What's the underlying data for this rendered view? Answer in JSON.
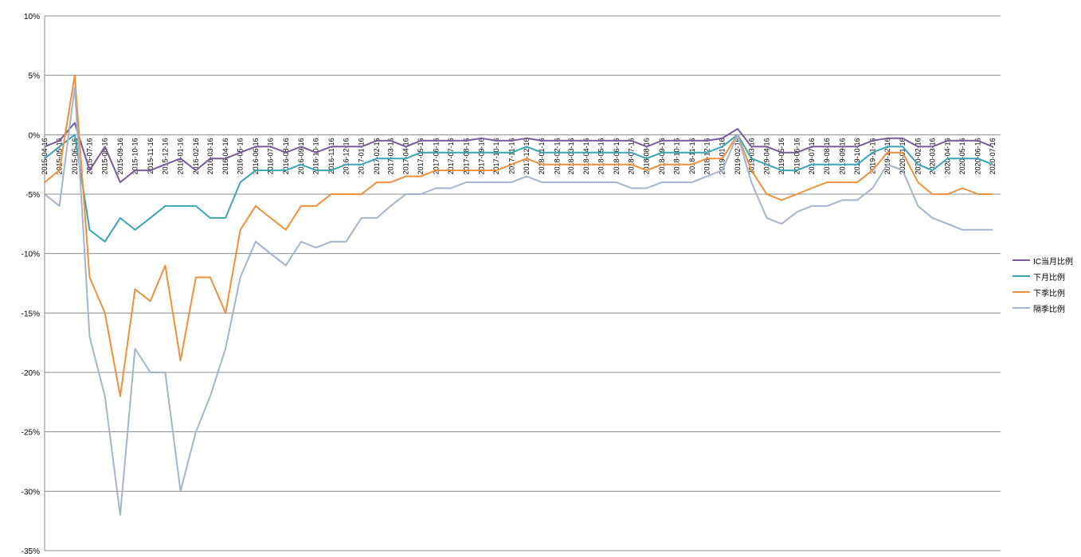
{
  "chart_data": {
    "type": "line",
    "title": "",
    "xlabel": "",
    "ylabel": "",
    "ylim": [
      -35,
      10
    ],
    "yticks": [
      10,
      5,
      0,
      -5,
      -10,
      -15,
      -20,
      -25,
      -30,
      -35
    ],
    "ytick_labels": [
      "10%",
      "5%",
      "0%",
      "-5%",
      "-10%",
      "-15%",
      "-20%",
      "-25%",
      "-30%",
      "-35%"
    ],
    "grid": true,
    "legend_position": "right",
    "x_range": [
      "2015-04-16",
      "2020-08-01"
    ],
    "xtick_labels": [
      "2015-04-16",
      "2015-05-16",
      "2015-06-16",
      "2015-07-16",
      "2015-08-16",
      "2015-09-16",
      "2015-10-16",
      "2015-11-16",
      "2015-12-16",
      "2016-01-16",
      "2016-02-16",
      "2016-03-16",
      "2016-04-16",
      "2016-05-16",
      "2016-06-16",
      "2016-07-16",
      "2016-08-16",
      "2016-09-16",
      "2016-10-16",
      "2016-11-16",
      "2016-12-16",
      "2017-01-16",
      "2017-02-16",
      "2017-03-16",
      "2017-04-16",
      "2017-05-16",
      "2017-06-16",
      "2017-07-16",
      "2017-08-16",
      "2017-09-16",
      "2017-10-16",
      "2017-11-16",
      "2017-12-16",
      "2018-01-16",
      "2018-02-16",
      "2018-03-16",
      "2018-04-16",
      "2018-05-16",
      "2018-06-16",
      "2018-07-16",
      "2018-08-16",
      "2018-09-16",
      "2018-10-16",
      "2018-11-16",
      "2018-12-16",
      "2019-01-16",
      "2019-02-16",
      "2019-03-16",
      "2019-04-16",
      "2019-05-16",
      "2019-06-16",
      "2019-07-16",
      "2019-08-16",
      "2019-09-16",
      "2019-10-16",
      "2019-11-16",
      "2019-12-16",
      "2020-01-16",
      "2020-02-16",
      "2020-03-16",
      "2020-04-16",
      "2020-05-16",
      "2020-06-16",
      "2020-07-16"
    ],
    "series": [
      {
        "name": "IC当月比例",
        "color": "#7a5a9e",
        "x": [
          "2015-04-16",
          "2015-05-16",
          "2015-06-16",
          "2015-07-16",
          "2015-08-16",
          "2015-09-16",
          "2015-10-16",
          "2015-11-16",
          "2015-12-16",
          "2016-01-16",
          "2016-02-16",
          "2016-03-16",
          "2016-04-16",
          "2016-05-16",
          "2016-06-16",
          "2016-07-16",
          "2016-08-16",
          "2016-09-16",
          "2016-10-16",
          "2016-11-16",
          "2016-12-16",
          "2017-01-16",
          "2017-02-16",
          "2017-03-16",
          "2017-04-16",
          "2017-05-16",
          "2017-06-16",
          "2017-07-16",
          "2017-08-16",
          "2017-09-16",
          "2017-10-16",
          "2017-11-16",
          "2017-12-16",
          "2018-01-16",
          "2018-02-16",
          "2018-03-16",
          "2018-04-16",
          "2018-05-16",
          "2018-06-16",
          "2018-07-16",
          "2018-08-16",
          "2018-09-16",
          "2018-10-16",
          "2018-11-16",
          "2018-12-16",
          "2019-01-16",
          "2019-02-16",
          "2019-03-16",
          "2019-04-16",
          "2019-05-16",
          "2019-06-16",
          "2019-07-16",
          "2019-08-16",
          "2019-09-16",
          "2019-10-16",
          "2019-11-16",
          "2019-12-16",
          "2020-01-16",
          "2020-02-16",
          "2020-03-16",
          "2020-04-16",
          "2020-05-16",
          "2020-06-16",
          "2020-07-16"
        ],
        "values": [
          -1,
          -0.5,
          1,
          -3,
          -1,
          -4,
          -3,
          -3,
          -2.5,
          -2,
          -3,
          -2,
          -2,
          -1.5,
          -1,
          -1,
          -1.5,
          -1,
          -1.5,
          -1,
          -1,
          -1,
          -0.5,
          -0.5,
          -1,
          -0.5,
          -0.5,
          -0.5,
          -0.5,
          -0.3,
          -0.5,
          -0.5,
          -0.3,
          -0.5,
          -0.5,
          -0.5,
          -0.5,
          -0.5,
          -0.5,
          -0.5,
          -1,
          -0.5,
          -0.5,
          -0.5,
          -0.5,
          -0.3,
          0.5,
          -1,
          -1,
          -1.5,
          -1.5,
          -1,
          -1,
          -1,
          -1,
          -0.5,
          -0.3,
          -0.3,
          -1,
          -1,
          -0.5,
          -0.5,
          -0.5,
          -1
        ]
      },
      {
        "name": "下月比例",
        "color": "#3aa3b8",
        "x": [
          "2015-04-16",
          "2015-05-16",
          "2015-06-16",
          "2015-07-16",
          "2015-08-16",
          "2015-09-16",
          "2015-10-16",
          "2015-11-16",
          "2015-12-16",
          "2016-01-16",
          "2016-02-16",
          "2016-03-16",
          "2016-04-16",
          "2016-05-16",
          "2016-06-16",
          "2016-07-16",
          "2016-08-16",
          "2016-09-16",
          "2016-10-16",
          "2016-11-16",
          "2016-12-16",
          "2017-01-16",
          "2017-02-16",
          "2017-03-16",
          "2017-04-16",
          "2017-05-16",
          "2017-06-16",
          "2017-07-16",
          "2017-08-16",
          "2017-09-16",
          "2017-10-16",
          "2017-11-16",
          "2017-12-16",
          "2018-01-16",
          "2018-02-16",
          "2018-03-16",
          "2018-04-16",
          "2018-05-16",
          "2018-06-16",
          "2018-07-16",
          "2018-08-16",
          "2018-09-16",
          "2018-10-16",
          "2018-11-16",
          "2018-12-16",
          "2019-01-16",
          "2019-02-16",
          "2019-03-16",
          "2019-04-16",
          "2019-05-16",
          "2019-06-16",
          "2019-07-16",
          "2019-08-16",
          "2019-09-16",
          "2019-10-16",
          "2019-11-16",
          "2019-12-16",
          "2020-01-16",
          "2020-02-16",
          "2020-03-16",
          "2020-04-16",
          "2020-05-16",
          "2020-06-16",
          "2020-07-16"
        ],
        "values": [
          -2,
          -1,
          0,
          -8,
          -9,
          -7,
          -8,
          -7,
          -6,
          -6,
          -6,
          -7,
          -7,
          -4,
          -3,
          -3,
          -3,
          -2.5,
          -3,
          -3,
          -2.5,
          -2.5,
          -2,
          -2,
          -2,
          -1.5,
          -1.5,
          -1.5,
          -1.5,
          -1.5,
          -1.5,
          -1.5,
          -1,
          -1.5,
          -1.5,
          -1.5,
          -1.5,
          -1.5,
          -1.5,
          -1.5,
          -2,
          -1.5,
          -1.5,
          -1.5,
          -1.5,
          -1,
          0,
          -2,
          -2.5,
          -3,
          -3,
          -2.5,
          -2.5,
          -2.5,
          -2.5,
          -1.5,
          -1,
          -1,
          -2.5,
          -3,
          -2,
          -2,
          -2,
          -2.5
        ]
      },
      {
        "name": "下季比例",
        "color": "#ef8f3a",
        "x": [
          "2015-04-16",
          "2015-05-16",
          "2015-06-16",
          "2015-07-16",
          "2015-08-16",
          "2015-09-16",
          "2015-10-16",
          "2015-11-16",
          "2015-12-16",
          "2016-01-16",
          "2016-02-16",
          "2016-03-16",
          "2016-04-16",
          "2016-05-16",
          "2016-06-16",
          "2016-07-16",
          "2016-08-16",
          "2016-09-16",
          "2016-10-16",
          "2016-11-16",
          "2016-12-16",
          "2017-01-16",
          "2017-02-16",
          "2017-03-16",
          "2017-04-16",
          "2017-05-16",
          "2017-06-16",
          "2017-07-16",
          "2017-08-16",
          "2017-09-16",
          "2017-10-16",
          "2017-11-16",
          "2017-12-16",
          "2018-01-16",
          "2018-02-16",
          "2018-03-16",
          "2018-04-16",
          "2018-05-16",
          "2018-06-16",
          "2018-07-16",
          "2018-08-16",
          "2018-09-16",
          "2018-10-16",
          "2018-11-16",
          "2018-12-16",
          "2019-01-16",
          "2019-02-16",
          "2019-03-16",
          "2019-04-16",
          "2019-05-16",
          "2019-06-16",
          "2019-07-16",
          "2019-08-16",
          "2019-09-16",
          "2019-10-16",
          "2019-11-16",
          "2019-12-16",
          "2020-01-16",
          "2020-02-16",
          "2020-03-16",
          "2020-04-16",
          "2020-05-16",
          "2020-06-16",
          "2020-07-16"
        ],
        "values": [
          -4,
          -3,
          5,
          -12,
          -15,
          -22,
          -13,
          -14,
          -11,
          -19,
          -12,
          -12,
          -15,
          -8,
          -6,
          -7,
          -8,
          -6,
          -6,
          -5,
          -5,
          -5,
          -4,
          -4,
          -3.5,
          -3.5,
          -3,
          -3,
          -3,
          -3,
          -3,
          -2.5,
          -2,
          -2.5,
          -2.5,
          -2.5,
          -2.5,
          -2.5,
          -2.5,
          -2.5,
          -3,
          -2.5,
          -2.5,
          -2.5,
          -2,
          -2,
          0,
          -3,
          -5,
          -5.5,
          -5,
          -4.5,
          -4,
          -4,
          -4,
          -3,
          -1.5,
          -1.5,
          -4,
          -5,
          -5,
          -4.5,
          -5,
          -5
        ]
      },
      {
        "name": "隔季比例",
        "color": "#a3b4cf",
        "x": [
          "2015-04-16",
          "2015-05-16",
          "2015-06-16",
          "2015-07-16",
          "2015-08-16",
          "2015-09-16",
          "2015-10-16",
          "2015-11-16",
          "2015-12-16",
          "2016-01-16",
          "2016-02-16",
          "2016-03-16",
          "2016-04-16",
          "2016-05-16",
          "2016-06-16",
          "2016-07-16",
          "2016-08-16",
          "2016-09-16",
          "2016-10-16",
          "2016-11-16",
          "2016-12-16",
          "2017-01-16",
          "2017-02-16",
          "2017-03-16",
          "2017-04-16",
          "2017-05-16",
          "2017-06-16",
          "2017-07-16",
          "2017-08-16",
          "2017-09-16",
          "2017-10-16",
          "2017-11-16",
          "2017-12-16",
          "2018-01-16",
          "2018-02-16",
          "2018-03-16",
          "2018-04-16",
          "2018-05-16",
          "2018-06-16",
          "2018-07-16",
          "2018-08-16",
          "2018-09-16",
          "2018-10-16",
          "2018-11-16",
          "2018-12-16",
          "2019-01-16",
          "2019-02-16",
          "2019-03-16",
          "2019-04-16",
          "2019-05-16",
          "2019-06-16",
          "2019-07-16",
          "2019-08-16",
          "2019-09-16",
          "2019-10-16",
          "2019-11-16",
          "2019-12-16",
          "2020-01-16",
          "2020-02-16",
          "2020-03-16",
          "2020-04-16",
          "2020-05-16",
          "2020-06-16",
          "2020-07-16"
        ],
        "values": [
          -5,
          -6,
          4,
          -17,
          -22,
          -32,
          -18,
          -20,
          -20,
          -30,
          -25,
          -22,
          -18,
          -12,
          -9,
          -10,
          -11,
          -9,
          -9.5,
          -9,
          -9,
          -7,
          -7,
          -6,
          -5,
          -5,
          -4.5,
          -4.5,
          -4,
          -4,
          -4,
          -4,
          -3.5,
          -4,
          -4,
          -4,
          -4,
          -4,
          -4,
          -4.5,
          -4.5,
          -4,
          -4,
          -4,
          -3.5,
          -3,
          0,
          -4,
          -7,
          -7.5,
          -6.5,
          -6,
          -6,
          -5.5,
          -5.5,
          -4.5,
          -2.5,
          -3,
          -6,
          -7,
          -7.5,
          -8,
          -8,
          -8
        ]
      }
    ]
  }
}
